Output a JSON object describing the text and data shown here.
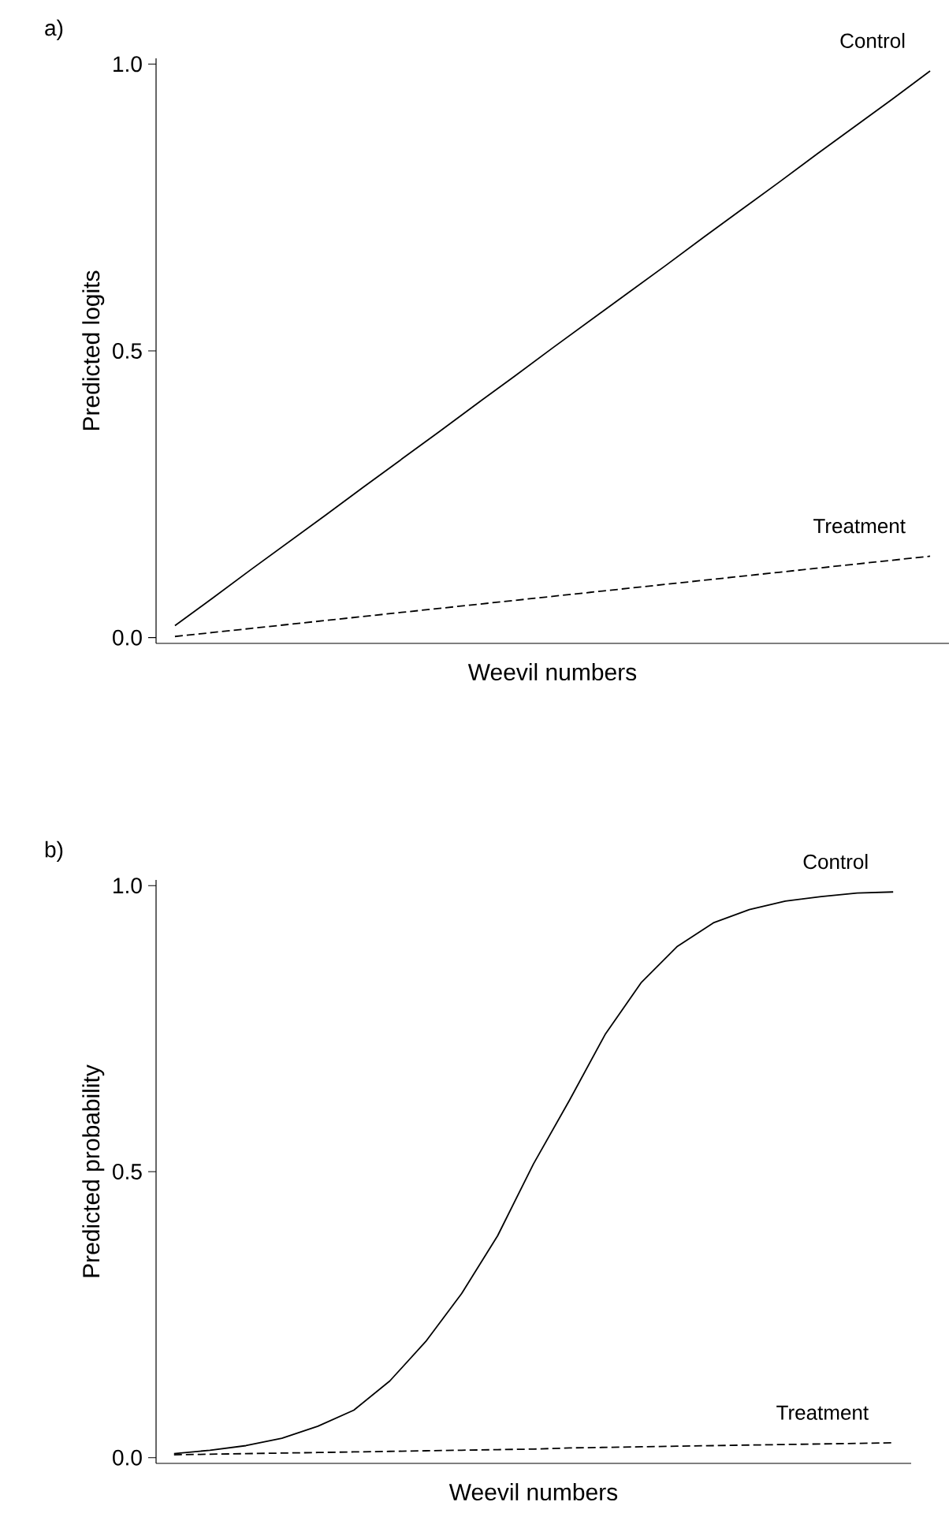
{
  "chart_data": [
    {
      "type": "line",
      "title": "a)",
      "xlabel": "Weevil numbers",
      "ylabel": "Predicted logits",
      "categories": [
        null,
        null,
        null,
        null,
        null,
        null,
        null,
        null,
        null,
        null,
        null,
        null,
        null,
        null,
        null,
        null,
        null,
        null,
        null,
        null,
        null
      ],
      "ylim": [
        -0.01,
        1.01
      ],
      "yticks": [
        {
          "value": 0,
          "label": "0.0"
        },
        {
          "value": 0.5,
          "label": "0.5"
        },
        {
          "value": 1,
          "label": "1.0"
        }
      ],
      "tick_labels": "y",
      "series": [
        {
          "name": "Control",
          "color": "#000000",
          "line_style": "solid",
          "values": [
            0.021,
            0.069,
            0.118,
            0.166,
            0.214,
            0.263,
            0.311,
            0.359,
            0.408,
            0.456,
            0.505,
            0.553,
            0.601,
            0.649,
            0.698,
            0.746,
            0.794,
            0.843,
            0.891,
            0.939,
            0.988
          ]
        },
        {
          "name": "Treatment",
          "color": "#000000",
          "line_style": "dashed",
          "values": [
            0.002,
            0.009,
            0.016,
            0.023,
            0.03,
            0.037,
            0.044,
            0.051,
            0.058,
            0.065,
            0.072,
            0.079,
            0.086,
            0.093,
            0.1,
            0.107,
            0.114,
            0.121,
            0.128,
            0.135,
            0.142
          ]
        }
      ]
    },
    {
      "type": "line",
      "title": "b)",
      "xlabel": "Weevil numbers",
      "ylabel": "Predicted probability",
      "categories": [
        null,
        null,
        null,
        null,
        null,
        null,
        null,
        null,
        null,
        null,
        null,
        null,
        null,
        null,
        null,
        null,
        null,
        null,
        null,
        null,
        null
      ],
      "ylim": [
        -0.01,
        1.01
      ],
      "yticks": [
        {
          "value": 0,
          "label": "0.0"
        },
        {
          "value": 0.5,
          "label": "0.5"
        },
        {
          "value": 1,
          "label": "1.0"
        }
      ],
      "tick_labels": "y",
      "series": [
        {
          "name": "Control",
          "color": "#000000",
          "line_style": "solid",
          "values": [
            0.007,
            0.013,
            0.021,
            0.034,
            0.055,
            0.083,
            0.134,
            0.203,
            0.287,
            0.388,
            0.514,
            0.625,
            0.741,
            0.831,
            0.894,
            0.935,
            0.958,
            0.973,
            0.981,
            0.987,
            0.989
          ]
        },
        {
          "name": "Treatment",
          "color": "#000000",
          "line_style": "dashed",
          "values": [
            0.005,
            0.006,
            0.007,
            0.008,
            0.009,
            0.01,
            0.011,
            0.012,
            0.013,
            0.014,
            0.015,
            0.017,
            0.018,
            0.019,
            0.02,
            0.021,
            0.022,
            0.023,
            0.024,
            0.025,
            0.026
          ]
        }
      ]
    }
  ]
}
